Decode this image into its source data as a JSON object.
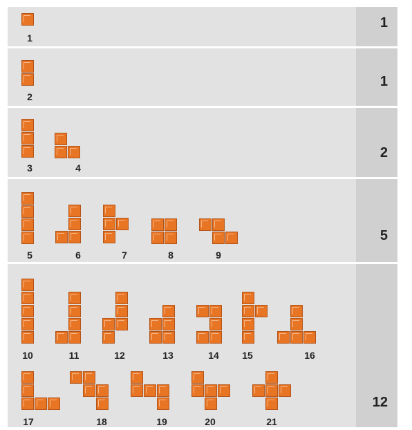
{
  "bands": [
    {
      "total": "1",
      "pieces": [
        {
          "label": "1",
          "cells": [
            [
              0,
              0
            ]
          ]
        }
      ]
    },
    {
      "total": "1",
      "pieces": [
        {
          "label": "2",
          "cells": [
            [
              0,
              0
            ],
            [
              0,
              1
            ]
          ]
        }
      ]
    },
    {
      "total": "2",
      "pieces": [
        {
          "label": "3",
          "cells": [
            [
              0,
              0
            ],
            [
              0,
              1
            ],
            [
              0,
              2
            ]
          ]
        },
        {
          "label": "4",
          "cells": [
            [
              0,
              0
            ],
            [
              0,
              1
            ],
            [
              1,
              1
            ]
          ]
        }
      ]
    },
    {
      "total": "5",
      "pieces": [
        {
          "label": "5",
          "cells": [
            [
              0,
              0
            ],
            [
              0,
              1
            ],
            [
              0,
              2
            ],
            [
              0,
              3
            ]
          ]
        },
        {
          "label": "6",
          "cells": [
            [
              1,
              0
            ],
            [
              1,
              1
            ],
            [
              0,
              2
            ],
            [
              1,
              2
            ]
          ]
        },
        {
          "label": "7",
          "cells": [
            [
              0,
              0
            ],
            [
              0,
              1
            ],
            [
              1,
              1
            ],
            [
              0,
              2
            ]
          ]
        },
        {
          "label": "8",
          "cells": [
            [
              0,
              0
            ],
            [
              1,
              0
            ],
            [
              0,
              1
            ],
            [
              1,
              1
            ]
          ]
        },
        {
          "label": "9",
          "cells": [
            [
              0,
              0
            ],
            [
              1,
              0
            ],
            [
              1,
              1
            ],
            [
              2,
              1
            ]
          ]
        }
      ]
    },
    {
      "total": "12",
      "pieces": [
        {
          "label": "10",
          "cells": [
            [
              0,
              0
            ],
            [
              0,
              1
            ],
            [
              0,
              2
            ],
            [
              0,
              3
            ],
            [
              0,
              4
            ]
          ]
        },
        {
          "label": "11",
          "cells": [
            [
              1,
              0
            ],
            [
              1,
              1
            ],
            [
              1,
              2
            ],
            [
              0,
              3
            ],
            [
              1,
              3
            ]
          ]
        },
        {
          "label": "12",
          "cells": [
            [
              1,
              0
            ],
            [
              1,
              1
            ],
            [
              0,
              2
            ],
            [
              1,
              2
            ],
            [
              0,
              3
            ]
          ]
        },
        {
          "label": "13",
          "cells": [
            [
              1,
              0
            ],
            [
              0,
              1
            ],
            [
              1,
              1
            ],
            [
              0,
              2
            ],
            [
              1,
              2
            ]
          ]
        },
        {
          "label": "14",
          "cells": [
            [
              0,
              0
            ],
            [
              1,
              0
            ],
            [
              1,
              1
            ],
            [
              0,
              2
            ],
            [
              1,
              2
            ]
          ]
        },
        {
          "label": "15",
          "cells": [
            [
              0,
              0
            ],
            [
              0,
              1
            ],
            [
              1,
              1
            ],
            [
              0,
              2
            ],
            [
              0,
              3
            ]
          ]
        },
        {
          "label": "16",
          "cells": [
            [
              1,
              0
            ],
            [
              1,
              1
            ],
            [
              0,
              2
            ],
            [
              1,
              2
            ],
            [
              2,
              2
            ]
          ]
        },
        {
          "label": "17",
          "cells": [
            [
              0,
              0
            ],
            [
              0,
              1
            ],
            [
              0,
              2
            ],
            [
              1,
              2
            ],
            [
              2,
              2
            ]
          ]
        },
        {
          "label": "18",
          "cells": [
            [
              0,
              0
            ],
            [
              1,
              0
            ],
            [
              1,
              1
            ],
            [
              2,
              1
            ],
            [
              2,
              2
            ]
          ]
        },
        {
          "label": "19",
          "cells": [
            [
              0,
              0
            ],
            [
              0,
              1
            ],
            [
              1,
              1
            ],
            [
              2,
              1
            ],
            [
              2,
              2
            ]
          ]
        },
        {
          "label": "20",
          "cells": [
            [
              0,
              0
            ],
            [
              0,
              1
            ],
            [
              1,
              1
            ],
            [
              2,
              1
            ],
            [
              1,
              2
            ]
          ]
        },
        {
          "label": "21",
          "cells": [
            [
              1,
              0
            ],
            [
              0,
              1
            ],
            [
              1,
              1
            ],
            [
              2,
              1
            ],
            [
              1,
              2
            ]
          ]
        }
      ]
    }
  ]
}
